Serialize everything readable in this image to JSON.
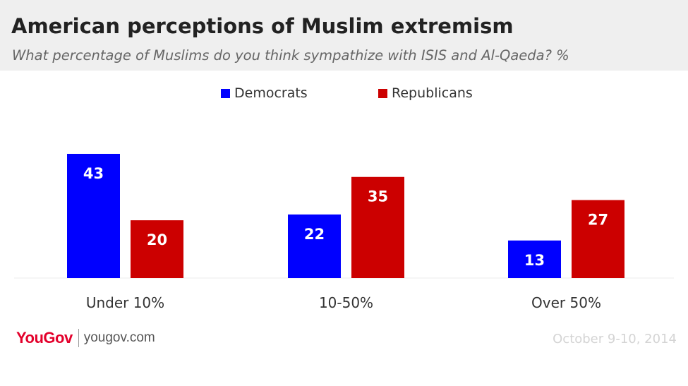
{
  "header": {
    "title": "American perceptions of Muslim extremism",
    "subtitle": "What percentage of Muslims do you think sympathize with ISIS and Al-Qaeda? %"
  },
  "footer": {
    "brand": "YouGov",
    "url": "yougov.com",
    "date": "October 9-10, 2014"
  },
  "chart_data": {
    "type": "bar",
    "title": "American perceptions of Muslim extremism",
    "subtitle": "What percentage of Muslims do you think sympathize with ISIS and Al-Qaeda? %",
    "categories": [
      "Under 10%",
      "10-50%",
      "Over 50%"
    ],
    "series": [
      {
        "name": "Democrats",
        "values": [
          43,
          22,
          13
        ],
        "color": "#0000ff"
      },
      {
        "name": "Republicans",
        "values": [
          20,
          35,
          27
        ],
        "color": "#cc0000"
      }
    ],
    "ylim": [
      0,
      43
    ],
    "legend_position": "top-center",
    "grid": false,
    "data_labels": true
  }
}
